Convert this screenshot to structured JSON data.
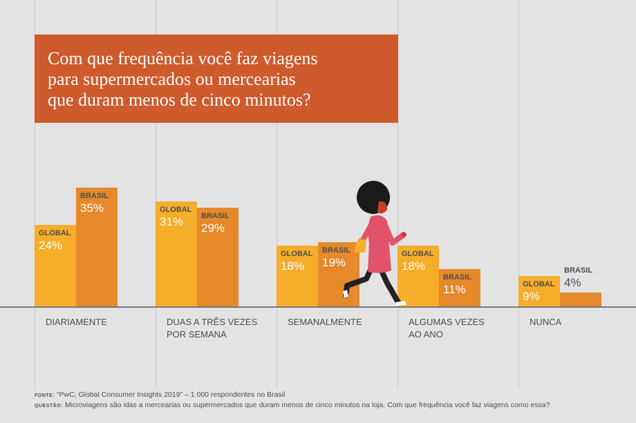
{
  "chart_data": {
    "type": "bar",
    "title": "Com que frequência você faz viagens para supermercados ou mercearias que duram menos de cinco minutos?",
    "title_lines": [
      "Com que frequência você faz viagens",
      "para supermercados ou mercearias",
      "que duram menos de cinco minutos?"
    ],
    "categories": [
      "DIARIAMENTE",
      "DUAS A TRÊS VEZES POR SEMANA",
      "SEMANALMENTE",
      "ALGUMAS VEZES AO ANO",
      "NUNCA"
    ],
    "category_lines": [
      [
        "DIARIAMENTE"
      ],
      [
        "DUAS A TRÊS VEZES",
        "POR SEMANA"
      ],
      [
        "SEMANALMENTE"
      ],
      [
        "ALGUMAS VEZES",
        "AO ANO"
      ],
      [
        "NUNCA"
      ]
    ],
    "series": [
      {
        "name": "GLOBAL",
        "values": [
          24,
          31,
          18,
          18,
          9
        ],
        "color": "#f5ad2a"
      },
      {
        "name": "BRASIL",
        "values": [
          35,
          29,
          19,
          11,
          4
        ],
        "color": "#e5892a"
      }
    ],
    "value_labels": [
      [
        "24%",
        "31%",
        "18%",
        "18%",
        "9%"
      ],
      [
        "35%",
        "29%",
        "19%",
        "11%",
        "4%"
      ]
    ],
    "unit": "%",
    "ylim": [
      0,
      35
    ],
    "grid": false,
    "legend": "none"
  },
  "footer": {
    "source_key": "FONTE:",
    "source_text": "“PwC, Global Consumer Insights 2019” – 1 000 respondentes no Brasil",
    "question_key": "QUESTÃO:",
    "question_text": "Microviagens são idas a mercearias ou supermercados que duram menos de cinco minutos na loja. Com que frequência você faz viagens como essa?"
  },
  "colors": {
    "background": "#e3e3e3",
    "title_box": "#cf5a2c",
    "text": "#4d4d4d"
  },
  "icons": {
    "illustration": "person-walking-with-bag-icon"
  }
}
